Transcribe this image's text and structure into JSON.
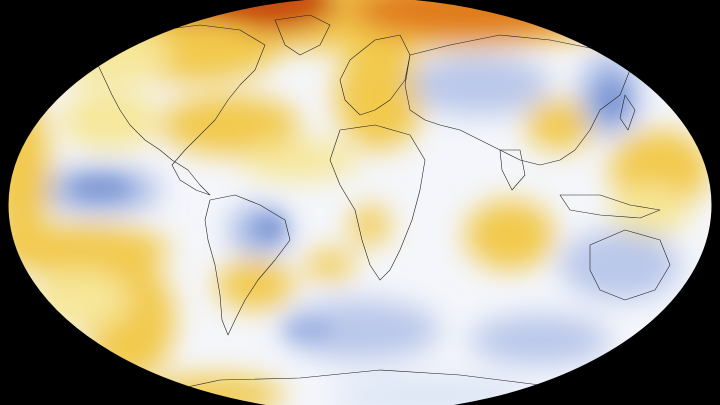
{
  "map": {
    "projection": "robinson-like",
    "background": "#000000",
    "ocean_neutral": "#f4f6fb",
    "palette": {
      "warm_light": "#f6e79a",
      "warm_mid": "#f2c94c",
      "warm_strong": "#e07a1f",
      "warm_extreme": "#c84d0a",
      "cool_light": "#dbe4f5",
      "cool_mid": "#9fb3e2",
      "cool_strong": "#7f98d4"
    },
    "coastline_color": "#222222"
  }
}
